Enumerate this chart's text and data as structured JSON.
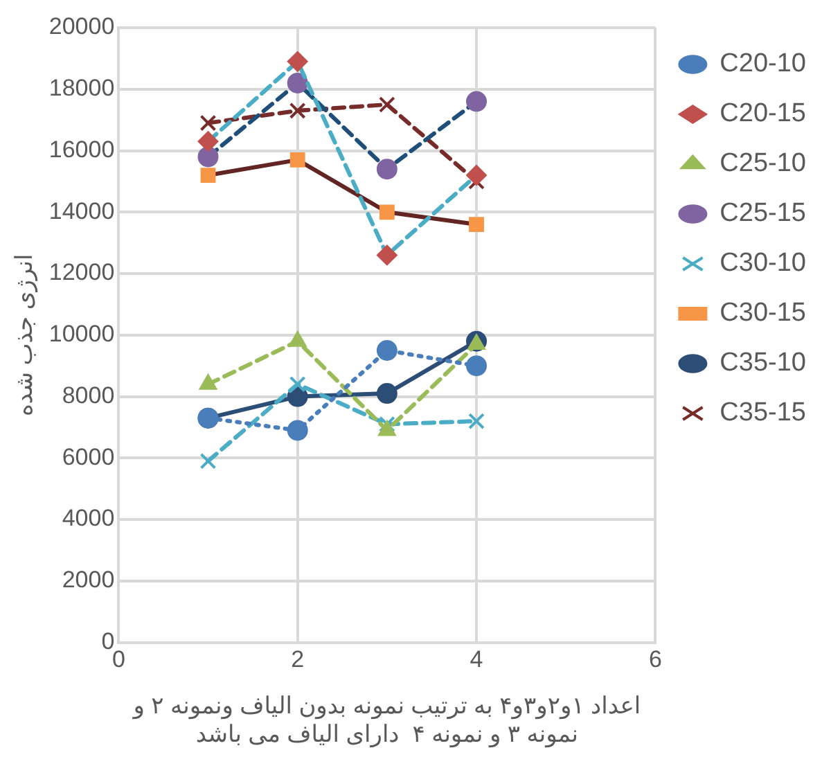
{
  "chart_data": {
    "type": "line",
    "xlabel": "اعداد ۱و۲و۳و۴ به ترتیب نمونه بدون الیاف ونمونه ۲ و\nنمونه ۳ و نمونه ۴  دارای الیاف می باشد",
    "ylabel": "انرژی جذب شده",
    "x": [
      1,
      2,
      3,
      4
    ],
    "xlim": [
      0,
      6
    ],
    "xticks": [
      0,
      2,
      4,
      6
    ],
    "ylim": [
      0,
      20000
    ],
    "yticks": [
      0,
      2000,
      4000,
      6000,
      8000,
      10000,
      12000,
      14000,
      16000,
      18000,
      20000
    ],
    "grid": true,
    "legend": "right",
    "series": [
      {
        "name": "C20-10",
        "color": "#4a7ebb",
        "colors": [
          "#4a7ebb",
          "#4a7ebb",
          "#4a7ebb",
          "#4a7ebb"
        ],
        "marker": "circle",
        "line_style": "dotted",
        "values": [
          7300,
          6900,
          9500,
          9000
        ]
      },
      {
        "name": "C20-15",
        "color": "#4bacc6",
        "colors": [
          "#c0504d",
          "#c0504d",
          "#c0504d",
          "#c0504d"
        ],
        "marker": "diamond",
        "line_style": "dashed",
        "values": [
          16300,
          18900,
          12600,
          15200
        ]
      },
      {
        "name": "C25-10",
        "color": "#9bbb59",
        "colors": [
          "#9bbb59",
          "#9bbb59",
          "#9bbb59",
          "#9bbb59"
        ],
        "marker": "triangle",
        "line_style": "dashed",
        "values": [
          8400,
          9800,
          6900,
          9700
        ]
      },
      {
        "name": "C25-15",
        "color": "#1f4e79",
        "colors": [
          "#8064a2",
          "#8064a2",
          "#8064a2",
          "#8064a2"
        ],
        "marker": "circle",
        "line_style": "dashed",
        "values": [
          15800,
          18200,
          15400,
          17600
        ]
      },
      {
        "name": "C30-10",
        "color": "#4bacc6",
        "colors": [
          "#4bacc6",
          "#4bacc6",
          "#4bacc6",
          "#4bacc6"
        ],
        "marker": "cross",
        "line_style": "dashed",
        "values": [
          5900,
          8400,
          7100,
          7200
        ]
      },
      {
        "name": "C30-15",
        "color": "#632523",
        "colors": [
          "#f79646",
          "#f79646",
          "#f79646",
          "#f79646"
        ],
        "marker": "square",
        "line_style": "solid",
        "values": [
          15200,
          15700,
          14000,
          13600
        ]
      },
      {
        "name": "C35-10",
        "color": "#2c4d75",
        "colors": [
          "#2c4d75",
          "#2c4d75",
          "#2c4d75",
          "#2c4d75"
        ],
        "marker": "circle",
        "line_style": "solid",
        "values": [
          7300,
          8000,
          8100,
          9800
        ]
      },
      {
        "name": "C35-15",
        "color": "#772c2a",
        "colors": [
          "#772c2a",
          "#772c2a",
          "#772c2a",
          "#772c2a"
        ],
        "marker": "cross",
        "line_style": "dashed",
        "values": [
          16900,
          17300,
          17500,
          15000
        ]
      }
    ]
  }
}
